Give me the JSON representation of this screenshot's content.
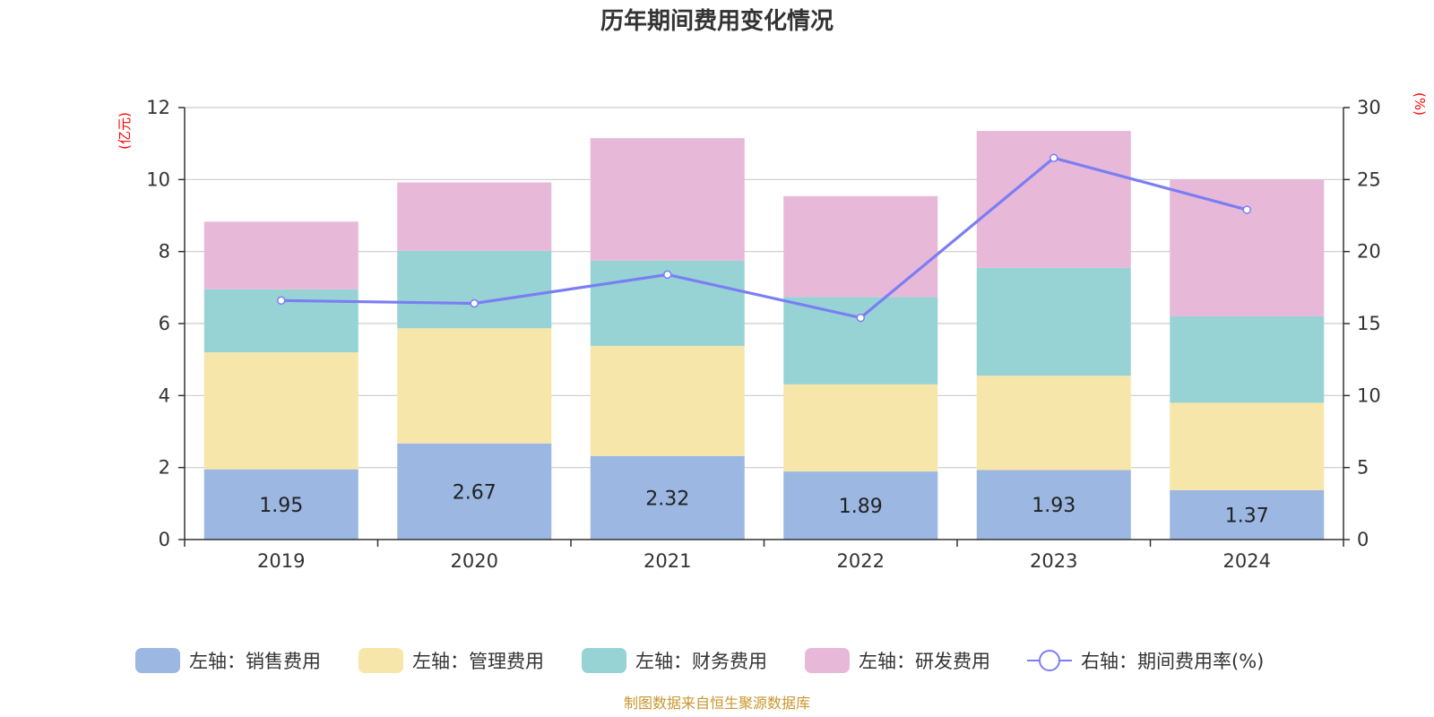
{
  "colors": {
    "sales": "#9bb7e2",
    "admin": "#f7e6a9",
    "finance": "#97d3d4",
    "rd": "#e7b8d8",
    "line": "#7b7ef2",
    "unit": "#ff0000",
    "source": "#c8962e"
  },
  "chart_data": {
    "type": "bar",
    "stacked": true,
    "title": "历年期间费用变化情况",
    "categories": [
      "2019",
      "2020",
      "2021",
      "2022",
      "2023",
      "2024"
    ],
    "y_left": {
      "unit": "(亿元)",
      "ylim": [
        0,
        12
      ],
      "ticks": [
        "0",
        "2",
        "4",
        "6",
        "8",
        "10",
        "12"
      ]
    },
    "y_right": {
      "unit": "(%)",
      "ylim": [
        0,
        30
      ],
      "ticks": [
        "0",
        "5",
        "10",
        "15",
        "20",
        "25",
        "30"
      ]
    },
    "grid": true,
    "legend_position": "bottom",
    "series": [
      {
        "key": "sales",
        "name": "左轴：销售费用",
        "axis": "left",
        "type": "bar",
        "values": [
          1.95,
          2.67,
          2.32,
          1.89,
          1.93,
          1.37
        ],
        "labels": [
          "1.95",
          "2.67",
          "2.32",
          "1.89",
          "1.93",
          "1.37"
        ]
      },
      {
        "key": "admin",
        "name": "左轴：管理费用",
        "axis": "left",
        "type": "bar",
        "values": [
          3.25,
          3.2,
          3.06,
          2.42,
          2.62,
          2.43
        ]
      },
      {
        "key": "finance",
        "name": "左轴：财务费用",
        "axis": "left",
        "type": "bar",
        "values": [
          1.75,
          2.15,
          2.37,
          2.43,
          3.0,
          2.4
        ]
      },
      {
        "key": "rd",
        "name": "左轴：研发费用",
        "axis": "left",
        "type": "bar",
        "values": [
          1.88,
          1.9,
          3.4,
          2.8,
          3.8,
          3.8
        ]
      },
      {
        "key": "rate",
        "name": "右轴：期间费用率(%)",
        "axis": "right",
        "type": "line",
        "values": [
          16.6,
          16.4,
          18.4,
          15.4,
          26.5,
          22.9
        ]
      }
    ]
  },
  "source": "制图数据来自恒生聚源数据库"
}
